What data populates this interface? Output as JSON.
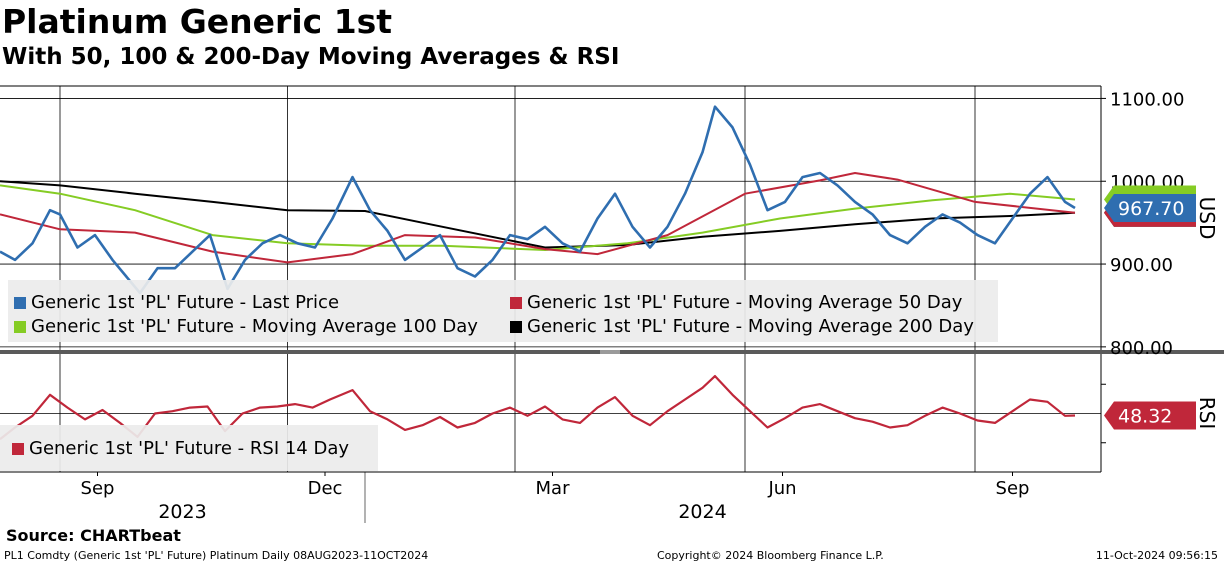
{
  "title": "Platinum Generic 1st",
  "subtitle": "With 50, 100 & 200-Day Moving Averages & RSI",
  "source": "Source: CHARTbeat",
  "footer": {
    "left": "PL1 Comdty (Generic 1st 'PL' Future) Platinum  Daily 08AUG2023-11OCT2024",
    "center": "Copyright© 2024 Bloomberg Finance L.P.",
    "right": "11-Oct-2024 09:56:15"
  },
  "colors": {
    "last_price": "#2f6eb0",
    "ma50": "#c0273a",
    "ma100": "#85cc24",
    "ma200": "#000000",
    "rsi": "#c0273a",
    "legend_bg": "#ebebeb"
  },
  "legend": {
    "last": "Generic 1st 'PL' Future - Last Price",
    "ma50": "Generic 1st 'PL' Future - Moving Average 50 Day",
    "ma100": "Generic 1st 'PL' Future - Moving Average 100 Day",
    "ma200": "Generic 1st 'PL' Future - Moving Average 200 Day",
    "rsi": "Generic 1st 'PL' Future - RSI 14 Day"
  },
  "chart_data": [
    {
      "type": "line",
      "title": "Platinum Generic 1st",
      "ylabel": "USD",
      "ylim": [
        795,
        1115
      ],
      "y_ticks": [
        "1100.00",
        "1000.00",
        "900.00",
        "800.00"
      ],
      "x_ticks": [
        "Sep",
        "Dec",
        "Mar",
        "Jun",
        "Sep"
      ],
      "year_labels": [
        "2023",
        "2024"
      ],
      "grid": true,
      "legend_position": "bottom",
      "x_range": [
        "2023-08-08",
        "2024-10-11"
      ],
      "series": [
        {
          "name": "Generic 1st 'PL' Future - Last Price",
          "points": [
            [
              "2023-08-08",
              915
            ],
            [
              "2023-08-14",
              905
            ],
            [
              "2023-08-21",
              925
            ],
            [
              "2023-08-28",
              965
            ],
            [
              "2023-09-01",
              960
            ],
            [
              "2023-09-08",
              920
            ],
            [
              "2023-09-15",
              935
            ],
            [
              "2023-09-22",
              905
            ],
            [
              "2023-10-03",
              865
            ],
            [
              "2023-10-10",
              895
            ],
            [
              "2023-10-17",
              895
            ],
            [
              "2023-10-24",
              915
            ],
            [
              "2023-10-31",
              935
            ],
            [
              "2023-11-07",
              870
            ],
            [
              "2023-11-14",
              905
            ],
            [
              "2023-11-21",
              925
            ],
            [
              "2023-11-28",
              935
            ],
            [
              "2023-12-05",
              925
            ],
            [
              "2023-12-12",
              920
            ],
            [
              "2023-12-19",
              955
            ],
            [
              "2023-12-27",
              1005
            ],
            [
              "2024-01-03",
              965
            ],
            [
              "2024-01-10",
              940
            ],
            [
              "2024-01-17",
              905
            ],
            [
              "2024-01-24",
              920
            ],
            [
              "2024-01-31",
              935
            ],
            [
              "2024-02-07",
              895
            ],
            [
              "2024-02-14",
              885
            ],
            [
              "2024-02-21",
              905
            ],
            [
              "2024-02-28",
              935
            ],
            [
              "2024-03-06",
              930
            ],
            [
              "2024-03-13",
              945
            ],
            [
              "2024-03-20",
              925
            ],
            [
              "2024-03-27",
              915
            ],
            [
              "2024-04-03",
              955
            ],
            [
              "2024-04-10",
              985
            ],
            [
              "2024-04-17",
              945
            ],
            [
              "2024-04-24",
              920
            ],
            [
              "2024-05-01",
              945
            ],
            [
              "2024-05-08",
              985
            ],
            [
              "2024-05-15",
              1035
            ],
            [
              "2024-05-20",
              1090
            ],
            [
              "2024-05-27",
              1065
            ],
            [
              "2024-06-03",
              1020
            ],
            [
              "2024-06-10",
              965
            ],
            [
              "2024-06-17",
              975
            ],
            [
              "2024-06-24",
              1005
            ],
            [
              "2024-07-01",
              1010
            ],
            [
              "2024-07-08",
              995
            ],
            [
              "2024-07-15",
              975
            ],
            [
              "2024-07-22",
              960
            ],
            [
              "2024-07-29",
              935
            ],
            [
              "2024-08-05",
              925
            ],
            [
              "2024-08-12",
              945
            ],
            [
              "2024-08-19",
              960
            ],
            [
              "2024-08-26",
              950
            ],
            [
              "2024-09-02",
              935
            ],
            [
              "2024-09-09",
              925
            ],
            [
              "2024-09-16",
              955
            ],
            [
              "2024-09-23",
              985
            ],
            [
              "2024-09-30",
              1005
            ],
            [
              "2024-10-07",
              975
            ],
            [
              "2024-10-11",
              967.7
            ]
          ]
        },
        {
          "name": "Generic 1st 'PL' Future - Moving Average 50 Day",
          "points": [
            [
              "2023-08-08",
              960
            ],
            [
              "2023-09-01",
              942
            ],
            [
              "2023-10-01",
              938
            ],
            [
              "2023-11-01",
              915
            ],
            [
              "2023-12-01",
              902
            ],
            [
              "2023-12-27",
              912
            ],
            [
              "2024-01-17",
              935
            ],
            [
              "2024-02-14",
              932
            ],
            [
              "2024-03-13",
              918
            ],
            [
              "2024-04-03",
              912
            ],
            [
              "2024-05-01",
              935
            ],
            [
              "2024-06-01",
              985
            ],
            [
              "2024-07-01",
              1001
            ],
            [
              "2024-07-15",
              1010
            ],
            [
              "2024-08-01",
              1002
            ],
            [
              "2024-09-01",
              975
            ],
            [
              "2024-10-11",
              962
            ]
          ]
        },
        {
          "name": "Generic 1st 'PL' Future - Moving Average 100 Day",
          "points": [
            [
              "2023-08-08",
              995
            ],
            [
              "2023-09-01",
              985
            ],
            [
              "2023-10-01",
              965
            ],
            [
              "2023-11-01",
              935
            ],
            [
              "2023-12-01",
              925
            ],
            [
              "2024-01-01",
              922
            ],
            [
              "2024-02-01",
              922
            ],
            [
              "2024-03-13",
              917
            ],
            [
              "2024-04-15",
              925
            ],
            [
              "2024-05-15",
              938
            ],
            [
              "2024-06-15",
              955
            ],
            [
              "2024-07-15",
              967
            ],
            [
              "2024-08-15",
              977
            ],
            [
              "2024-09-15",
              985
            ],
            [
              "2024-10-11",
              978
            ]
          ]
        },
        {
          "name": "Generic 1st 'PL' Future - Moving Average 200 Day",
          "points": [
            [
              "2023-08-08",
              1000
            ],
            [
              "2023-09-01",
              995
            ],
            [
              "2023-10-01",
              985
            ],
            [
              "2023-11-01",
              975
            ],
            [
              "2023-12-01",
              965
            ],
            [
              "2024-01-01",
              964
            ],
            [
              "2024-02-01",
              945
            ],
            [
              "2024-03-13",
              920
            ],
            [
              "2024-04-15",
              923
            ],
            [
              "2024-05-15",
              933
            ],
            [
              "2024-06-15",
              940
            ],
            [
              "2024-07-15",
              948
            ],
            [
              "2024-08-15",
              955
            ],
            [
              "2024-09-15",
              958
            ],
            [
              "2024-10-11",
              962
            ]
          ]
        }
      ],
      "last_value_label": "967.70"
    },
    {
      "type": "line",
      "ylabel": "RSI",
      "ylim": [
        0,
        100
      ],
      "series": [
        {
          "name": "Generic 1st 'PL' Future - RSI 14 Day",
          "points": [
            [
              "2023-08-08",
              28
            ],
            [
              "2023-08-14",
              38
            ],
            [
              "2023-08-21",
              48
            ],
            [
              "2023-08-28",
              66
            ],
            [
              "2023-09-04",
              55
            ],
            [
              "2023-09-11",
              45
            ],
            [
              "2023-09-18",
              53
            ],
            [
              "2023-09-25",
              42
            ],
            [
              "2023-10-02",
              30
            ],
            [
              "2023-10-09",
              50
            ],
            [
              "2023-10-16",
              52
            ],
            [
              "2023-10-23",
              55
            ],
            [
              "2023-10-30",
              56
            ],
            [
              "2023-11-06",
              35
            ],
            [
              "2023-11-13",
              50
            ],
            [
              "2023-11-20",
              55
            ],
            [
              "2023-11-27",
              56
            ],
            [
              "2023-12-04",
              58
            ],
            [
              "2023-12-11",
              55
            ],
            [
              "2023-12-18",
              62
            ],
            [
              "2023-12-27",
              70
            ],
            [
              "2024-01-03",
              52
            ],
            [
              "2024-01-10",
              45
            ],
            [
              "2024-01-17",
              36
            ],
            [
              "2024-01-24",
              40
            ],
            [
              "2024-01-31",
              47
            ],
            [
              "2024-02-07",
              38
            ],
            [
              "2024-02-14",
              42
            ],
            [
              "2024-02-21",
              50
            ],
            [
              "2024-02-28",
              55
            ],
            [
              "2024-03-06",
              48
            ],
            [
              "2024-03-13",
              56
            ],
            [
              "2024-03-20",
              45
            ],
            [
              "2024-03-27",
              42
            ],
            [
              "2024-04-03",
              55
            ],
            [
              "2024-04-10",
              64
            ],
            [
              "2024-04-17",
              48
            ],
            [
              "2024-04-24",
              40
            ],
            [
              "2024-05-01",
              52
            ],
            [
              "2024-05-08",
              62
            ],
            [
              "2024-05-15",
              72
            ],
            [
              "2024-05-20",
              82
            ],
            [
              "2024-05-27",
              66
            ],
            [
              "2024-06-03",
              52
            ],
            [
              "2024-06-10",
              38
            ],
            [
              "2024-06-17",
              46
            ],
            [
              "2024-06-24",
              55
            ],
            [
              "2024-07-01",
              58
            ],
            [
              "2024-07-08",
              52
            ],
            [
              "2024-07-15",
              46
            ],
            [
              "2024-07-22",
              43
            ],
            [
              "2024-07-29",
              38
            ],
            [
              "2024-08-05",
              40
            ],
            [
              "2024-08-12",
              48
            ],
            [
              "2024-08-19",
              55
            ],
            [
              "2024-08-26",
              50
            ],
            [
              "2024-09-02",
              44
            ],
            [
              "2024-09-09",
              42
            ],
            [
              "2024-09-16",
              52
            ],
            [
              "2024-09-23",
              62
            ],
            [
              "2024-09-30",
              60
            ],
            [
              "2024-10-07",
              48
            ],
            [
              "2024-10-11",
              48.32
            ]
          ]
        }
      ],
      "last_value_label": "48.32"
    }
  ]
}
